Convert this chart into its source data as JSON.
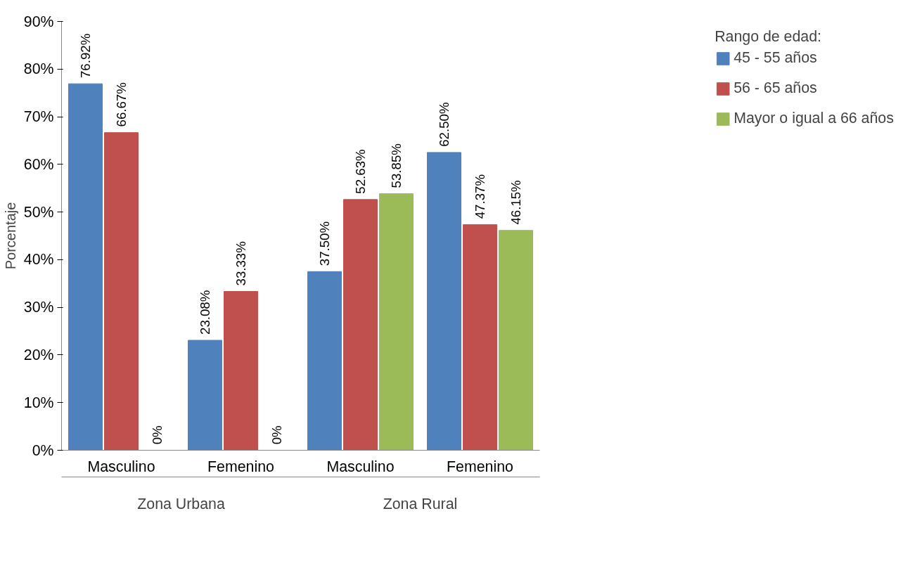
{
  "chart_data": {
    "type": "bar",
    "ylabel": "Porcentaje",
    "legend_title": "Rango de edad:",
    "legend": "right",
    "grid": false,
    "categories": [
      "Masculino",
      "Femenino",
      "Masculino",
      "Femenino"
    ],
    "annotations": [
      "Zona Urbana",
      "Zona Rural"
    ],
    "ylim": [
      0,
      90
    ],
    "yticks": [
      {
        "value": 0,
        "label": "0%"
      },
      {
        "value": 10,
        "label": "10%"
      },
      {
        "value": 20,
        "label": "20%"
      },
      {
        "value": 30,
        "label": "30%"
      },
      {
        "value": 40,
        "label": "40%"
      },
      {
        "value": 50,
        "label": "50%"
      },
      {
        "value": 60,
        "label": "60%"
      },
      {
        "value": 70,
        "label": "70%"
      },
      {
        "value": 80,
        "label": "80%"
      },
      {
        "value": 90,
        "label": "90%"
      }
    ],
    "series": [
      {
        "name": "45 - 55 años",
        "color": "#4f81bd",
        "values": [
          76.92,
          23.08,
          37.5,
          62.5
        ],
        "value_labels": [
          "76.92%",
          "23.08%",
          "37.50%",
          "62.50%"
        ]
      },
      {
        "name": "56 - 65 años",
        "color": "#c0504d",
        "values": [
          66.67,
          33.33,
          52.63,
          47.37
        ],
        "value_labels": [
          "66.67%",
          "33.33%",
          "52.63%",
          "47.37%"
        ]
      },
      {
        "name": "Mayor o igual a 66 años",
        "color": "#9bbb59",
        "values": [
          0,
          0,
          53.85,
          46.15
        ],
        "value_labels": [
          "0%",
          "0%",
          "53.85%",
          "46.15%"
        ]
      }
    ]
  }
}
